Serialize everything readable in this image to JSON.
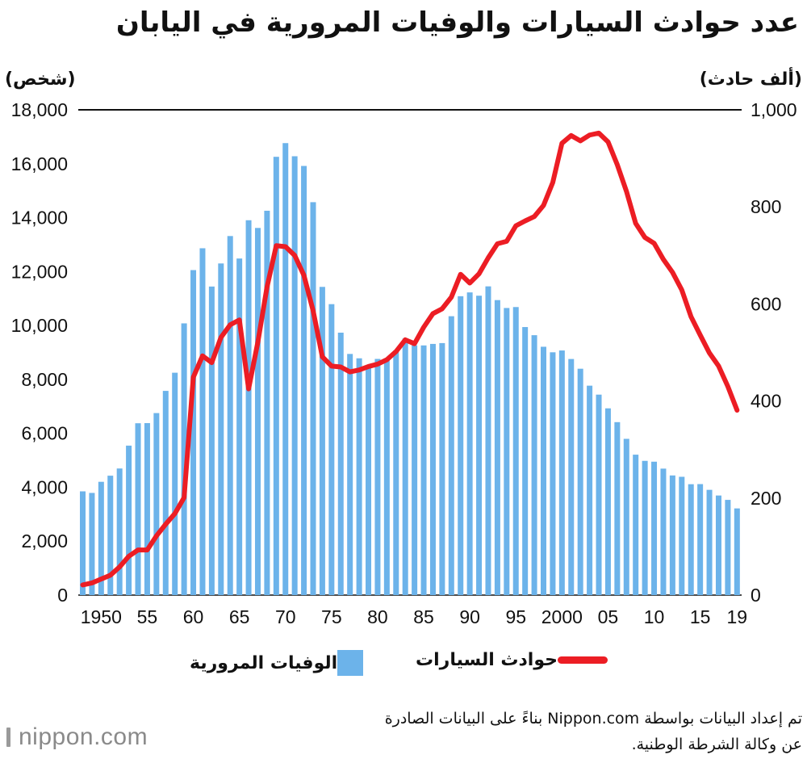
{
  "title": "عدد حوادث السيارات والوفيات المرورية في اليابان",
  "left_unit": "(شخص)",
  "right_unit": "(ألف حادث)",
  "legend": {
    "deaths": "الوفيات المرورية",
    "accidents": "حوادث السيارات"
  },
  "source": {
    "line1": "تم إعداد البيانات بواسطة Nippon.com بناءً على البيانات الصادرة",
    "line2": "عن وكالة الشرطة الوطنية."
  },
  "logo": "nippon.com",
  "colors": {
    "bars": "#6cb3ea",
    "line": "#ec1d24"
  },
  "chart_data": {
    "type": "bar",
    "years": [
      1948,
      1949,
      1950,
      1951,
      1952,
      1953,
      1954,
      1955,
      1956,
      1957,
      1958,
      1959,
      1960,
      1961,
      1962,
      1963,
      1964,
      1965,
      1966,
      1967,
      1968,
      1969,
      1970,
      1971,
      1972,
      1973,
      1974,
      1975,
      1976,
      1977,
      1978,
      1979,
      1980,
      1981,
      1982,
      1983,
      1984,
      1985,
      1986,
      1987,
      1988,
      1989,
      1990,
      1991,
      1992,
      1993,
      1994,
      1995,
      1996,
      1997,
      1998,
      1999,
      2000,
      2001,
      2002,
      2003,
      2004,
      2005,
      2006,
      2007,
      2008,
      2009,
      2010,
      2011,
      2012,
      2013,
      2014,
      2015,
      2016,
      2017,
      2018,
      2019
    ],
    "x_tick_labels": [
      {
        "year": 1950,
        "label": "1950"
      },
      {
        "year": 1955,
        "label": "55"
      },
      {
        "year": 1960,
        "label": "60"
      },
      {
        "year": 1965,
        "label": "65"
      },
      {
        "year": 1970,
        "label": "70"
      },
      {
        "year": 1975,
        "label": "75"
      },
      {
        "year": 1980,
        "label": "80"
      },
      {
        "year": 1985,
        "label": "85"
      },
      {
        "year": 1990,
        "label": "90"
      },
      {
        "year": 1995,
        "label": "95"
      },
      {
        "year": 2000,
        "label": "2000"
      },
      {
        "year": 2005,
        "label": "05"
      },
      {
        "year": 2010,
        "label": "10"
      },
      {
        "year": 2015,
        "label": "15"
      },
      {
        "year": 2019,
        "label": "19"
      }
    ],
    "series": [
      {
        "name": "الوفيات المرورية",
        "axis": "left",
        "type": "bar",
        "values": [
          3848,
          3790,
          4202,
          4429,
          4696,
          5544,
          6374,
          6379,
          6751,
          7575,
          8248,
          10079,
          12055,
          12865,
          11445,
          12301,
          13318,
          12484,
          13904,
          13618,
          14256,
          16257,
          16765,
          16278,
          15918,
          14574,
          11432,
          10792,
          9734,
          8945,
          8783,
          8466,
          8760,
          8719,
          9073,
          9520,
          9262,
          9261,
          9317,
          9347,
          10344,
          11086,
          11227,
          11105,
          11451,
          10942,
          10649,
          10684,
          9942,
          9640,
          9211,
          9006,
          9073,
          8757,
          8396,
          7768,
          7436,
          6927,
          6415,
          5796,
          5209,
          4979,
          4948,
          4691,
          4438,
          4388,
          4113,
          4117,
          3904,
          3694,
          3532,
          3215
        ]
      },
      {
        "name": "حوادث السيارات",
        "axis": "right",
        "type": "line",
        "values": [
          21,
          25,
          33,
          41,
          58,
          80,
          93,
          93,
          122,
          146,
          168,
          201,
          449,
          493,
          479,
          531,
          557,
          567,
          425,
          521,
          635,
          720,
          718,
          700,
          659,
          586,
          491,
          472,
          470,
          460,
          464,
          471,
          476,
          485,
          502,
          526,
          518,
          552,
          580,
          590,
          614,
          661,
          643,
          662,
          695,
          724,
          729,
          761,
          771,
          780,
          803,
          850,
          931,
          947,
          936,
          948,
          952,
          934,
          887,
          832,
          766,
          737,
          725,
          692,
          665,
          629,
          574,
          536,
          499,
          472,
          430,
          381
        ]
      }
    ],
    "ylim_left": [
      0,
      18000
    ],
    "yticks_left": [
      "0",
      "2,000",
      "4,000",
      "6,000",
      "8,000",
      "10,000",
      "12,000",
      "14,000",
      "16,000",
      "18,000"
    ],
    "ylim_right": [
      0,
      1000
    ],
    "yticks_right": [
      "0",
      "200",
      "400",
      "600",
      "800",
      "1,000"
    ],
    "legend_position": "bottom",
    "grid": false
  }
}
